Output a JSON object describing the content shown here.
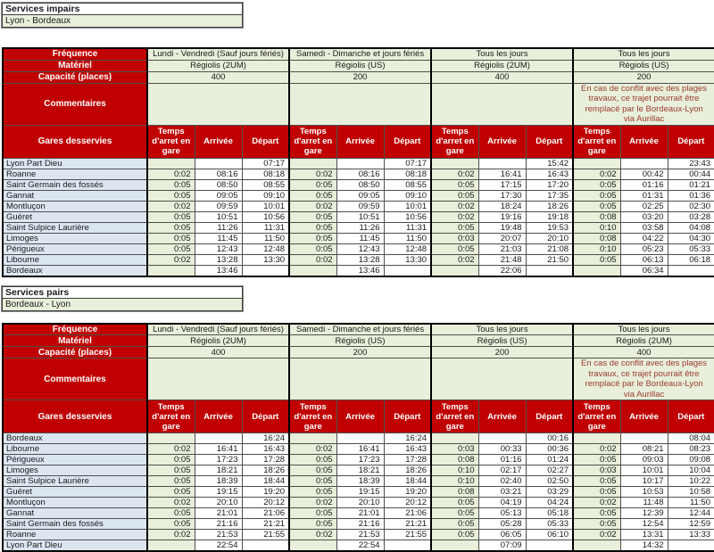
{
  "colors": {
    "header_red": "#c00000",
    "cell_green": "#e8efda",
    "cell_blue": "#dce6f1",
    "comment_text": "#9c3a30"
  },
  "labels": {
    "frequence": "Fréquence",
    "materiel": "Matériel",
    "capacite": "Capacité (places)",
    "commentaires": "Commentaires",
    "gares_desservies": "Gares desservies",
    "temps_arret": "Temps d'arret en gare",
    "arrivee": "Arrivée",
    "depart": "Départ"
  },
  "sections": [
    {
      "title": "Services impairs",
      "subtitle": "Lyon - Bordeaux",
      "groups": [
        {
          "frequence": "Lundi - Vendredi (Sauf jours fériés)",
          "materiel": "Régiolis (2UM)",
          "capacite": "400",
          "commentaire": ""
        },
        {
          "frequence": "Samedi - Dimanche et jours fériés",
          "materiel": "Régiolis (US)",
          "capacite": "200",
          "commentaire": ""
        },
        {
          "frequence": "Tous les jours",
          "materiel": "Régiolis (2UM)",
          "capacite": "400",
          "commentaire": ""
        },
        {
          "frequence": "Tous les jours",
          "materiel": "Régiolis (US)",
          "capacite": "200",
          "commentaire": "En cas de conflit avec des plages travaux, ce trajet pourrait être remplacé par le Bordeaux-Lyon via Aurillac"
        }
      ],
      "rows": [
        {
          "station": "Lyon Part Dieu",
          "times": [
            [
              "",
              "",
              "07:17"
            ],
            [
              "",
              "",
              "07:17"
            ],
            [
              "",
              "",
              "15:42"
            ],
            [
              "",
              "",
              "23:43"
            ]
          ]
        },
        {
          "station": "Roanne",
          "times": [
            [
              "0:02",
              "08:16",
              "08:18"
            ],
            [
              "0:02",
              "08:16",
              "08:18"
            ],
            [
              "0:02",
              "16:41",
              "16:43"
            ],
            [
              "0:02",
              "00:42",
              "00:44"
            ]
          ]
        },
        {
          "station": "Saint Germain des fossés",
          "times": [
            [
              "0:05",
              "08:50",
              "08:55"
            ],
            [
              "0:05",
              "08:50",
              "08:55"
            ],
            [
              "0:05",
              "17:15",
              "17:20"
            ],
            [
              "0:05",
              "01:16",
              "01:21"
            ]
          ]
        },
        {
          "station": "Gannat",
          "times": [
            [
              "0:05",
              "09:05",
              "09:10"
            ],
            [
              "0:05",
              "09:05",
              "09:10"
            ],
            [
              "0:05",
              "17:30",
              "17:35"
            ],
            [
              "0:05",
              "01:31",
              "01:36"
            ]
          ]
        },
        {
          "station": "Montluçon",
          "times": [
            [
              "0:02",
              "09:59",
              "10:01"
            ],
            [
              "0:02",
              "09:59",
              "10:01"
            ],
            [
              "0:02",
              "18:24",
              "18:26"
            ],
            [
              "0:05",
              "02:25",
              "02:30"
            ]
          ]
        },
        {
          "station": "Guéret",
          "times": [
            [
              "0:05",
              "10:51",
              "10:56"
            ],
            [
              "0:05",
              "10:51",
              "10:56"
            ],
            [
              "0:02",
              "19:16",
              "19:18"
            ],
            [
              "0:08",
              "03:20",
              "03:28"
            ]
          ]
        },
        {
          "station": "Saint Sulpice Laurière",
          "times": [
            [
              "0:05",
              "11:26",
              "11:31"
            ],
            [
              "0:05",
              "11:26",
              "11:31"
            ],
            [
              "0:05",
              "19:48",
              "19:53"
            ],
            [
              "0:10",
              "03:58",
              "04:08"
            ]
          ]
        },
        {
          "station": "Limoges",
          "times": [
            [
              "0:05",
              "11:45",
              "11:50"
            ],
            [
              "0:05",
              "11:45",
              "11:50"
            ],
            [
              "0:03",
              "20:07",
              "20:10"
            ],
            [
              "0:08",
              "04:22",
              "04:30"
            ]
          ]
        },
        {
          "station": "Périgueux",
          "times": [
            [
              "0:05",
              "12:43",
              "12:48"
            ],
            [
              "0:05",
              "12:43",
              "12:48"
            ],
            [
              "0:05",
              "21:03",
              "21:08"
            ],
            [
              "0:10",
              "05:23",
              "05:33"
            ]
          ]
        },
        {
          "station": "Libourne",
          "times": [
            [
              "0:02",
              "13:28",
              "13:30"
            ],
            [
              "0:02",
              "13:28",
              "13:30"
            ],
            [
              "0:02",
              "21:48",
              "21:50"
            ],
            [
              "0:05",
              "06:13",
              "06:18"
            ]
          ]
        },
        {
          "station": "Bordeaux",
          "times": [
            [
              "",
              "13:46",
              ""
            ],
            [
              "",
              "13:46",
              ""
            ],
            [
              "",
              "22:06",
              ""
            ],
            [
              "",
              "06:34",
              ""
            ]
          ]
        }
      ]
    },
    {
      "title": "Services pairs",
      "subtitle": "Bordeaux - Lyon",
      "groups": [
        {
          "frequence": "Lundi - Vendredi (Sauf jours fériés)",
          "materiel": "Régiolis (2UM)",
          "capacite": "400",
          "commentaire": ""
        },
        {
          "frequence": "Samedi - Dimanche et jours fériés",
          "materiel": "Régiolis (US)",
          "capacite": "200",
          "commentaire": ""
        },
        {
          "frequence": "Tous les jours",
          "materiel": "Régiolis (US)",
          "capacite": "200",
          "commentaire": ""
        },
        {
          "frequence": "Tous les jours",
          "materiel": "Régiolis (2UM)",
          "capacite": "400",
          "commentaire": "En cas de conflit avec des plages travaux, ce trajet pourrait être remplacé par le Bordeaux-Lyon via Aurillac"
        }
      ],
      "rows": [
        {
          "station": "Bordeaux",
          "times": [
            [
              "",
              "",
              "16:24"
            ],
            [
              "",
              "",
              "16:24"
            ],
            [
              "",
              "",
              "00:16"
            ],
            [
              "",
              "",
              "08:04"
            ]
          ]
        },
        {
          "station": "Libourne",
          "times": [
            [
              "0:02",
              "16:41",
              "16:43"
            ],
            [
              "0:02",
              "16:41",
              "16:43"
            ],
            [
              "0:03",
              "00:33",
              "00:36"
            ],
            [
              "0:02",
              "08:21",
              "08:23"
            ]
          ]
        },
        {
          "station": "Périgueux",
          "times": [
            [
              "0:05",
              "17:23",
              "17:28"
            ],
            [
              "0:05",
              "17:23",
              "17:28"
            ],
            [
              "0:08",
              "01:16",
              "01:24"
            ],
            [
              "0:05",
              "09:03",
              "09:08"
            ]
          ]
        },
        {
          "station": "Limoges",
          "times": [
            [
              "0:05",
              "18:21",
              "18:26"
            ],
            [
              "0:05",
              "18:21",
              "18:26"
            ],
            [
              "0:10",
              "02:17",
              "02:27"
            ],
            [
              "0:03",
              "10:01",
              "10:04"
            ]
          ]
        },
        {
          "station": "Saint Sulpice Laurière",
          "times": [
            [
              "0:05",
              "18:39",
              "18:44"
            ],
            [
              "0:05",
              "18:39",
              "18:44"
            ],
            [
              "0:10",
              "02:40",
              "02:50"
            ],
            [
              "0:05",
              "10:17",
              "10:22"
            ]
          ]
        },
        {
          "station": "Guéret",
          "times": [
            [
              "0:05",
              "19:15",
              "19:20"
            ],
            [
              "0:05",
              "19:15",
              "19:20"
            ],
            [
              "0:08",
              "03:21",
              "03:29"
            ],
            [
              "0:05",
              "10:53",
              "10:58"
            ]
          ]
        },
        {
          "station": "Montluçon",
          "times": [
            [
              "0:02",
              "20:10",
              "20:12"
            ],
            [
              "0:02",
              "20:10",
              "20:12"
            ],
            [
              "0:05",
              "04:19",
              "04:24"
            ],
            [
              "0:02",
              "11:48",
              "11:50"
            ]
          ]
        },
        {
          "station": "Gannat",
          "times": [
            [
              "0:05",
              "21:01",
              "21:06"
            ],
            [
              "0:05",
              "21:01",
              "21:06"
            ],
            [
              "0:05",
              "05:13",
              "05:18"
            ],
            [
              "0:05",
              "12:39",
              "12:44"
            ]
          ]
        },
        {
          "station": "Saint Germain des fossés",
          "times": [
            [
              "0:05",
              "21:16",
              "21:21"
            ],
            [
              "0:05",
              "21:16",
              "21:21"
            ],
            [
              "0:05",
              "05:28",
              "05:33"
            ],
            [
              "0:05",
              "12:54",
              "12:59"
            ]
          ]
        },
        {
          "station": "Roanne",
          "times": [
            [
              "0:02",
              "21:53",
              "21:55"
            ],
            [
              "0:02",
              "21:53",
              "21:55"
            ],
            [
              "0:05",
              "06:05",
              "06:10"
            ],
            [
              "0:02",
              "13:31",
              "13:33"
            ]
          ]
        },
        {
          "station": "Lyon Part Dieu",
          "times": [
            [
              "",
              "22:54",
              ""
            ],
            [
              "",
              "22:54",
              ""
            ],
            [
              "",
              "07:09",
              ""
            ],
            [
              "",
              "14:32",
              ""
            ]
          ]
        }
      ]
    }
  ]
}
